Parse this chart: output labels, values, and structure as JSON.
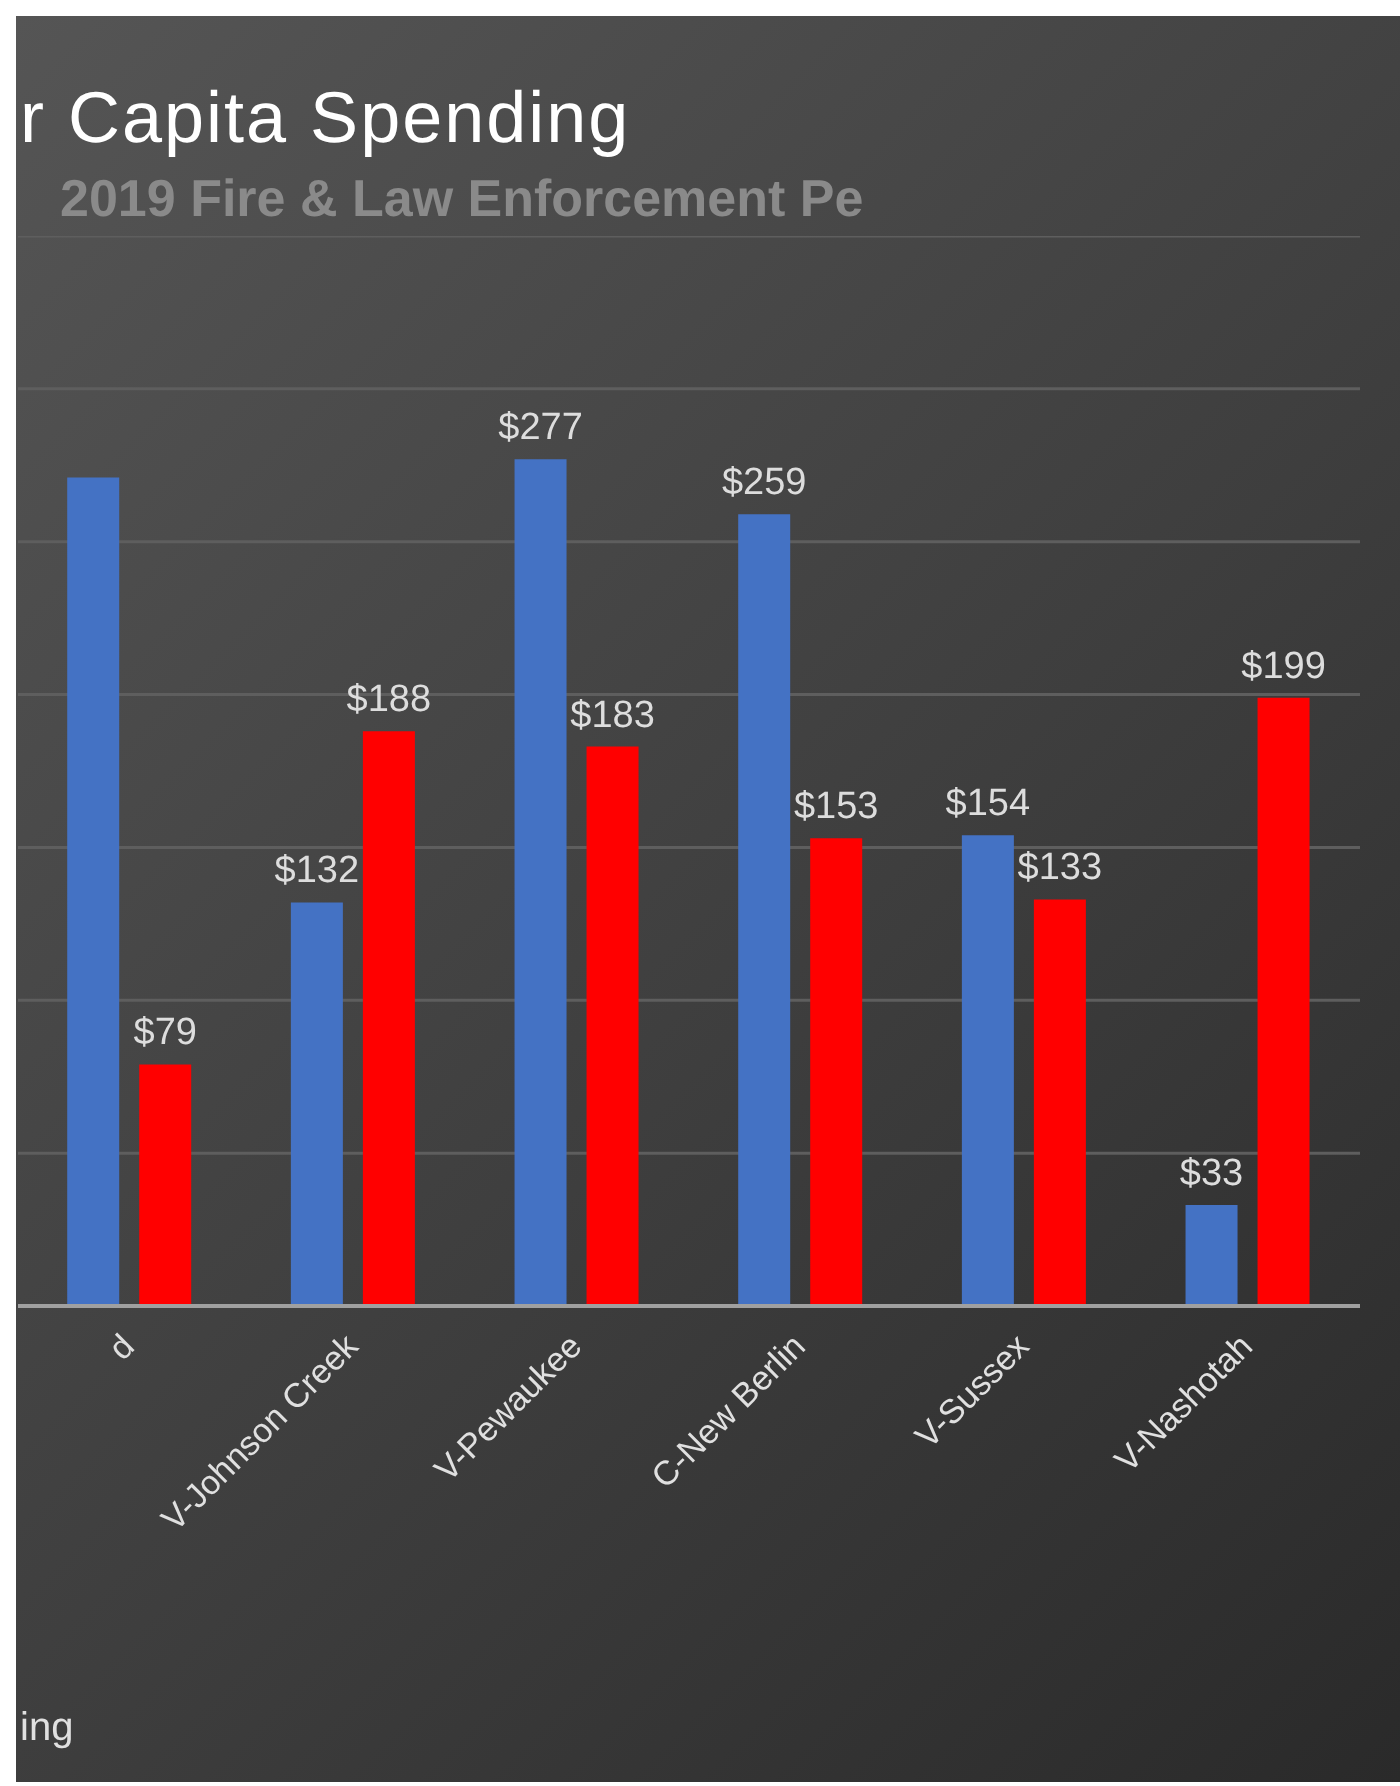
{
  "chart_data": {
    "type": "bar",
    "title": "r Capita Spending",
    "subtitle": "2019 Fire & Law Enforcement Pe",
    "annotations": [
      "ing"
    ],
    "categories": [
      "d",
      "V-Johnson Creek",
      "V-Pewaukee",
      "C-New Berlin",
      "V-Sussex",
      "V-Nashotah"
    ],
    "series": [
      {
        "color": "#4472c4",
        "values": [
          271,
          132,
          277,
          259,
          154,
          33
        ],
        "value_labels": [
          null,
          "$132",
          "$277",
          "$259",
          "$154",
          "$33"
        ]
      },
      {
        "color": "#ff0000",
        "values": [
          79,
          188,
          183,
          153,
          133,
          199
        ],
        "value_labels": [
          "$79",
          "$188",
          "$183",
          "$153",
          "$133",
          "$199"
        ]
      }
    ],
    "ylim": [
      0,
      350
    ],
    "tick_labels": "x",
    "grid": "y",
    "legend": false
  }
}
